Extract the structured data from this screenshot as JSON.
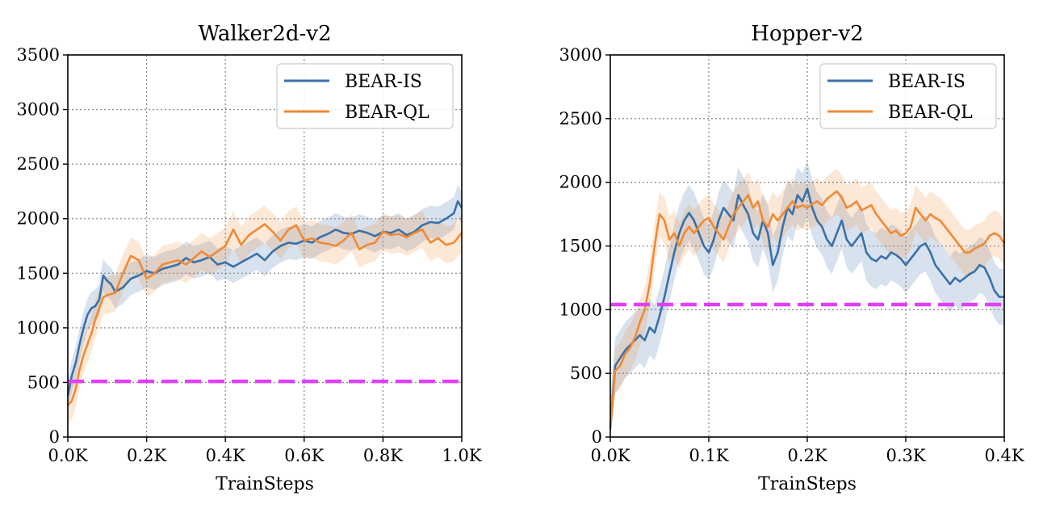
{
  "chart_data": [
    {
      "type": "line",
      "title": "Walker2d-v2",
      "xlabel": "TrainSteps",
      "ylabel": "",
      "xlim": [
        0,
        1000
      ],
      "ylim": [
        0,
        3500
      ],
      "xticks": [
        0,
        200,
        400,
        600,
        800,
        1000
      ],
      "xtick_labels": [
        "0.0K",
        "0.2K",
        "0.4K",
        "0.6K",
        "0.8K",
        "1.0K"
      ],
      "yticks": [
        0,
        500,
        1000,
        1500,
        2000,
        2500,
        3000,
        3500
      ],
      "ytick_labels": [
        "0",
        "500",
        "1000",
        "1500",
        "2000",
        "2500",
        "3000",
        "3500"
      ],
      "grid": true,
      "legend_position": "top-right",
      "baseline": {
        "y": 510,
        "color": "#e040fb",
        "style": "dashed"
      },
      "series": [
        {
          "name": "BEAR-IS",
          "color": "#3a70a8",
          "band": 150,
          "x": [
            0,
            10,
            20,
            30,
            40,
            50,
            60,
            70,
            80,
            90,
            100,
            110,
            120,
            140,
            160,
            180,
            200,
            220,
            240,
            260,
            280,
            300,
            320,
            340,
            360,
            380,
            400,
            420,
            440,
            460,
            480,
            500,
            520,
            540,
            560,
            580,
            600,
            620,
            640,
            660,
            680,
            700,
            720,
            740,
            760,
            780,
            800,
            820,
            840,
            860,
            880,
            900,
            920,
            940,
            960,
            980,
            990,
            1000
          ],
          "y": [
            380,
            560,
            680,
            850,
            1000,
            1120,
            1180,
            1200,
            1260,
            1480,
            1430,
            1400,
            1330,
            1370,
            1450,
            1480,
            1520,
            1500,
            1540,
            1560,
            1580,
            1640,
            1600,
            1620,
            1650,
            1580,
            1600,
            1560,
            1600,
            1640,
            1680,
            1620,
            1700,
            1750,
            1780,
            1770,
            1800,
            1780,
            1830,
            1860,
            1900,
            1870,
            1860,
            1890,
            1870,
            1840,
            1880,
            1870,
            1900,
            1850,
            1880,
            1940,
            1970,
            1960,
            2000,
            2050,
            2160,
            2100
          ]
        },
        {
          "name": "BEAR-QL",
          "color": "#f08a34",
          "band": 170,
          "x": [
            0,
            10,
            20,
            30,
            40,
            50,
            60,
            70,
            80,
            90,
            100,
            120,
            140,
            160,
            180,
            200,
            220,
            240,
            260,
            280,
            300,
            320,
            340,
            360,
            380,
            400,
            420,
            440,
            460,
            480,
            500,
            520,
            540,
            560,
            580,
            600,
            620,
            640,
            660,
            680,
            700,
            720,
            740,
            760,
            780,
            800,
            820,
            840,
            860,
            880,
            900,
            920,
            940,
            960,
            980,
            1000
          ],
          "y": [
            290,
            330,
            440,
            620,
            750,
            850,
            950,
            1080,
            1180,
            1280,
            1300,
            1320,
            1500,
            1660,
            1620,
            1450,
            1500,
            1580,
            1600,
            1620,
            1580,
            1640,
            1700,
            1650,
            1700,
            1750,
            1900,
            1760,
            1850,
            1900,
            1950,
            1880,
            1800,
            1900,
            1940,
            1800,
            1820,
            1780,
            1770,
            1750,
            1800,
            1870,
            1720,
            1760,
            1780,
            1880,
            1850,
            1860,
            1830,
            1870,
            1900,
            1780,
            1820,
            1760,
            1780,
            1870
          ]
        }
      ]
    },
    {
      "type": "line",
      "title": "Hopper-v2",
      "xlabel": "TrainSteps",
      "ylabel": "",
      "xlim": [
        0,
        400
      ],
      "ylim": [
        0,
        3000
      ],
      "xticks": [
        0,
        100,
        200,
        300,
        400
      ],
      "xtick_labels": [
        "0.0K",
        "0.1K",
        "0.2K",
        "0.3K",
        "0.4K"
      ],
      "yticks": [
        0,
        500,
        1000,
        1500,
        2000,
        2500,
        3000
      ],
      "ytick_labels": [
        "0",
        "500",
        "1000",
        "1500",
        "2000",
        "2500",
        "3000"
      ],
      "grid": true,
      "legend_position": "top-right",
      "baseline": {
        "y": 1040,
        "color": "#e040fb",
        "style": "dashed"
      },
      "series": [
        {
          "name": "BEAR-IS",
          "color": "#3a70a8",
          "band": 220,
          "x": [
            0,
            5,
            10,
            15,
            20,
            25,
            30,
            35,
            40,
            45,
            50,
            55,
            60,
            65,
            70,
            75,
            80,
            85,
            90,
            95,
            100,
            105,
            110,
            115,
            120,
            125,
            130,
            135,
            140,
            145,
            150,
            155,
            160,
            165,
            170,
            175,
            180,
            185,
            190,
            195,
            200,
            205,
            210,
            215,
            220,
            225,
            230,
            235,
            240,
            245,
            250,
            255,
            260,
            265,
            270,
            275,
            280,
            285,
            290,
            295,
            300,
            305,
            310,
            315,
            320,
            325,
            330,
            335,
            340,
            345,
            350,
            355,
            360,
            365,
            370,
            375,
            380,
            385,
            390,
            395,
            400
          ],
          "y": [
            80,
            560,
            620,
            680,
            720,
            760,
            800,
            760,
            860,
            820,
            950,
            1100,
            1280,
            1450,
            1600,
            1700,
            1760,
            1700,
            1600,
            1500,
            1450,
            1550,
            1700,
            1800,
            1750,
            1700,
            1900,
            1820,
            1750,
            1600,
            1550,
            1700,
            1600,
            1350,
            1450,
            1650,
            1800,
            1750,
            1900,
            1850,
            1950,
            1800,
            1700,
            1650,
            1550,
            1500,
            1600,
            1700,
            1550,
            1500,
            1550,
            1600,
            1450,
            1400,
            1380,
            1420,
            1400,
            1450,
            1430,
            1400,
            1350,
            1400,
            1450,
            1500,
            1520,
            1450,
            1350,
            1300,
            1250,
            1200,
            1250,
            1220,
            1250,
            1280,
            1300,
            1350,
            1330,
            1250,
            1150,
            1100,
            1100
          ]
        },
        {
          "name": "BEAR-QL",
          "color": "#f08a34",
          "band": 180,
          "x": [
            0,
            5,
            10,
            15,
            20,
            25,
            30,
            35,
            40,
            45,
            50,
            55,
            60,
            65,
            70,
            75,
            80,
            85,
            90,
            95,
            100,
            105,
            110,
            115,
            120,
            125,
            130,
            135,
            140,
            145,
            150,
            155,
            160,
            165,
            170,
            175,
            180,
            185,
            190,
            195,
            200,
            205,
            210,
            215,
            220,
            225,
            230,
            235,
            240,
            245,
            250,
            255,
            260,
            265,
            270,
            275,
            280,
            285,
            290,
            295,
            300,
            305,
            310,
            315,
            320,
            325,
            330,
            335,
            340,
            345,
            350,
            355,
            360,
            365,
            370,
            375,
            380,
            385,
            390,
            395,
            400
          ],
          "y": [
            60,
            520,
            560,
            650,
            700,
            780,
            900,
            1000,
            1200,
            1500,
            1750,
            1700,
            1550,
            1600,
            1500,
            1600,
            1650,
            1600,
            1650,
            1700,
            1720,
            1650,
            1600,
            1550,
            1650,
            1750,
            1800,
            1850,
            1900,
            1800,
            1850,
            1700,
            1650,
            1750,
            1700,
            1750,
            1800,
            1850,
            1800,
            1820,
            1800,
            1830,
            1850,
            1820,
            1870,
            1900,
            1930,
            1880,
            1800,
            1820,
            1850,
            1780,
            1800,
            1820,
            1750,
            1700,
            1650,
            1600,
            1620,
            1580,
            1600,
            1650,
            1800,
            1750,
            1700,
            1750,
            1720,
            1700,
            1650,
            1600,
            1550,
            1500,
            1450,
            1450,
            1480,
            1500,
            1520,
            1580,
            1600,
            1580,
            1520
          ]
        }
      ]
    }
  ]
}
